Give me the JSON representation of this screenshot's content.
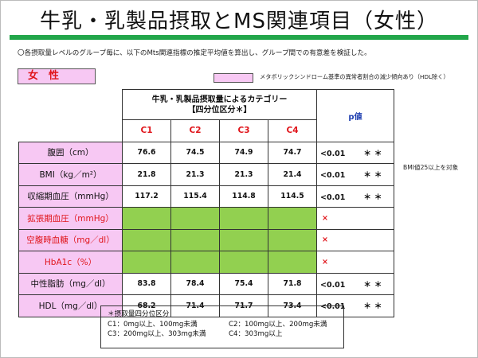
{
  "title": "牛乳・乳製品摂取とMS関連項目（女性）",
  "note": "〇各摂取量レベルのグループ毎に、以下のMts関連指標の推定平均値を算出し、グループ間での有意差を検証した。",
  "sex_label": "女　性",
  "legend": "メタボリックシンドローム基準の異常者割合の減少傾向あり（HDL除く）",
  "side_note": "BMI値25以上を対象",
  "table": {
    "cat_header_1": "牛乳・乳製品摂取量によるカテゴリー",
    "cat_header_2": "【四分位区分＊】",
    "p_header": "p値",
    "columns": [
      "C1",
      "C2",
      "C3",
      "C4"
    ],
    "rows": [
      {
        "label": "腹囲（cm）",
        "values": [
          "76.6",
          "74.5",
          "74.9",
          "74.7"
        ],
        "p": "<0.01",
        "sig": "＊＊"
      },
      {
        "label": "BMI（kg／m²）",
        "values": [
          "21.8",
          "21.3",
          "21.3",
          "21.4"
        ],
        "p": "<0.01",
        "sig": "＊＊"
      },
      {
        "label": "収縮期血圧（mmHg）",
        "values": [
          "117.2",
          "115.4",
          "114.8",
          "114.5"
        ],
        "p": "<0.01",
        "sig": "＊＊"
      },
      {
        "label": "拡張期血圧（mmHg）",
        "values": [],
        "p": "×",
        "sig": ""
      },
      {
        "label": "空腹時血糖（mg／dl）",
        "values": [],
        "p": "×",
        "sig": ""
      },
      {
        "label": "HbA1c（%）",
        "values": [],
        "p": "×",
        "sig": ""
      },
      {
        "label": "中性脂肪（mg／dl）",
        "values": [
          "83.8",
          "78.4",
          "75.4",
          "71.8"
        ],
        "p": "<0.01",
        "sig": "＊＊"
      },
      {
        "label": "HDL（mg／dl）",
        "values": [
          "68.2",
          "71.4",
          "71.7",
          "73.4"
        ],
        "p": "<0.01",
        "sig": "＊＊"
      }
    ]
  },
  "footnote": {
    "title": "＊摂取量四分位区分",
    "c1": "C1：0mg以上、100mg未満",
    "c2": "C2：100mg以上、200mg未満",
    "c3": "C3：200mg以上、303mg未満",
    "c4": "C4：303mg以上"
  },
  "colors": {
    "title_rule": "#22a64a",
    "pink": "#f7c8f3",
    "green": "#92d050",
    "red": "#e0151b",
    "blue": "#1f3fb0"
  }
}
